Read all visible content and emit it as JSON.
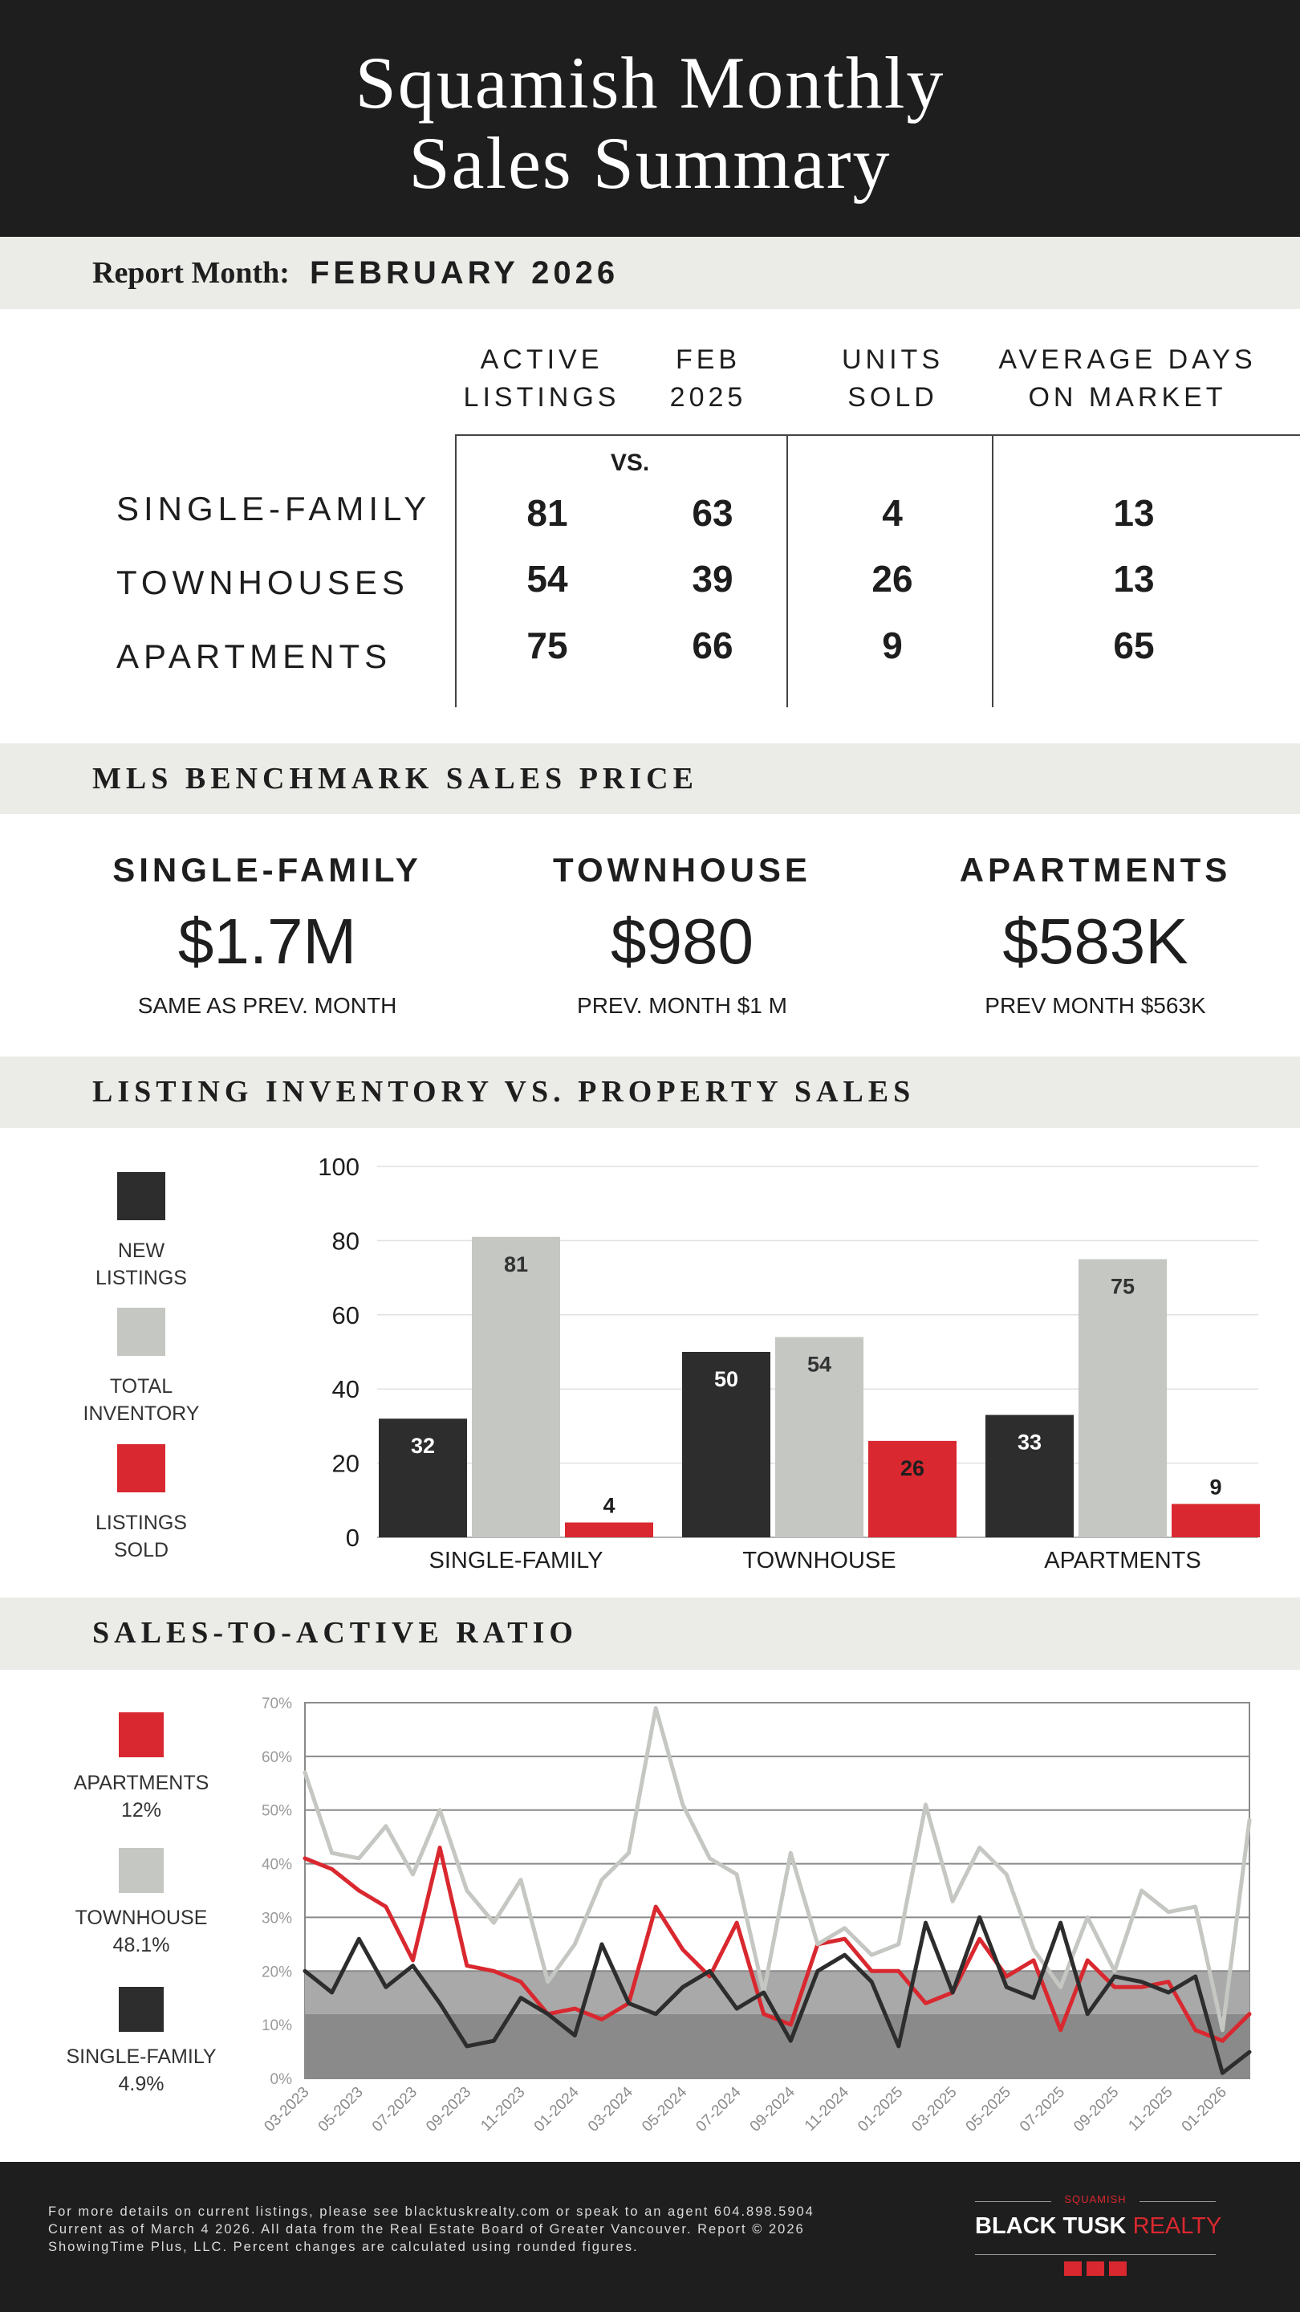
{
  "header": {
    "title_line1": "Squamish Monthly",
    "title_line2": "Sales Summary"
  },
  "report": {
    "label": "Report Month:",
    "month": "FEBRUARY 2026"
  },
  "summary_table": {
    "columns": [
      {
        "line1": "ACTIVE",
        "line2": "LISTINGS"
      },
      {
        "line1": "FEB",
        "line2": "2025"
      },
      {
        "line1": "UNITS",
        "line2": "SOLD"
      },
      {
        "line1": "AVERAGE DAYS",
        "line2": "ON MARKET"
      }
    ],
    "vs_label": "VS.",
    "rows": [
      {
        "label": "SINGLE-FAMILY",
        "active": "81",
        "prev": "63",
        "sold": "4",
        "dom": "13"
      },
      {
        "label": "TOWNHOUSES",
        "active": "54",
        "prev": "39",
        "sold": "26",
        "dom": "13"
      },
      {
        "label": "APARTMENTS",
        "active": "75",
        "prev": "66",
        "sold": "9",
        "dom": "65"
      }
    ]
  },
  "benchmark": {
    "section_title": "MLS BENCHMARK SALES PRICE",
    "items": [
      {
        "title": "SINGLE-FAMILY",
        "value": "$1.7M",
        "sub": "SAME AS PREV. MONTH"
      },
      {
        "title": "TOWNHOUSE",
        "value": "$980",
        "sub": "PREV. MONTH $1 M"
      },
      {
        "title": "APARTMENTS",
        "value": "$583K",
        "sub": "PREV MONTH $563K"
      }
    ]
  },
  "inventory": {
    "section_title": "LISTING INVENTORY VS. PROPERTY SALES",
    "legend": [
      {
        "line1": "NEW",
        "line2": "LISTINGS",
        "color": "#2d2d2d"
      },
      {
        "line1": "TOTAL",
        "line2": "INVENTORY",
        "color": "#c4c7c2"
      },
      {
        "line1": "LISTINGS",
        "line2": "SOLD",
        "color": "#d9282f"
      }
    ]
  },
  "ratio": {
    "section_title": "SALES-TO-ACTIVE RATIO",
    "legend": [
      {
        "line1": "APARTMENTS",
        "line2": "12%",
        "color": "#d9282f"
      },
      {
        "line1": "TOWNHOUSE",
        "line2": "48.1%",
        "color": "#c4c7c2"
      },
      {
        "line1": "SINGLE-FAMILY",
        "line2": "4.9%",
        "color": "#2d2d2d"
      }
    ]
  },
  "chart_data": [
    {
      "type": "bar",
      "categories": [
        "SINGLE-FAMILY",
        "TOWNHOUSE",
        "APARTMENTS"
      ],
      "series": [
        {
          "name": "NEW LISTINGS",
          "values": [
            32,
            50,
            33
          ],
          "color": "#2d2d2d"
        },
        {
          "name": "TOTAL INVENTORY",
          "values": [
            81,
            54,
            75
          ],
          "color": "#c4c7c2"
        },
        {
          "name": "LISTINGS SOLD",
          "values": [
            4,
            26,
            9
          ],
          "color": "#d9282f"
        }
      ],
      "ylim": [
        0,
        100
      ],
      "yticks": [
        0,
        20,
        40,
        60,
        80,
        100
      ],
      "grid": true
    },
    {
      "type": "line",
      "x": [
        "03-2023",
        "04-2023",
        "05-2023",
        "06-2023",
        "07-2023",
        "08-2023",
        "09-2023",
        "10-2023",
        "11-2023",
        "12-2023",
        "01-2024",
        "02-2024",
        "03-2024",
        "04-2024",
        "05-2024",
        "06-2024",
        "07-2024",
        "08-2024",
        "09-2024",
        "10-2024",
        "11-2024",
        "12-2024",
        "01-2025",
        "02-2025",
        "03-2025",
        "04-2025",
        "05-2025",
        "06-2025",
        "07-2025",
        "08-2025",
        "09-2025",
        "10-2025",
        "11-2025",
        "12-2025",
        "01-2026",
        "02-2026"
      ],
      "xtick_labels": [
        "03-2023",
        "05-2023",
        "07-2023",
        "09-2023",
        "11-2023",
        "01-2024",
        "03-2024",
        "05-2024",
        "07-2024",
        "09-2024",
        "11-2024",
        "01-2025",
        "03-2025",
        "05-2025",
        "07-2025",
        "09-2025",
        "11-2025",
        "01-2026"
      ],
      "series": [
        {
          "name": "APARTMENTS",
          "color": "#d9282f",
          "values": [
            41,
            39,
            35,
            32,
            22,
            43,
            21,
            20,
            18,
            12,
            13,
            11,
            14,
            32,
            24,
            19,
            29,
            12,
            10,
            25,
            26,
            20,
            20,
            14,
            16,
            26,
            19,
            22,
            9,
            22,
            17,
            17,
            18,
            9,
            7,
            12
          ]
        },
        {
          "name": "TOWNHOUSE",
          "color": "#c4c7c2",
          "values": [
            57,
            42,
            41,
            47,
            38,
            50,
            35,
            29,
            37,
            18,
            25,
            37,
            42,
            69,
            51,
            41,
            38,
            16,
            42,
            25,
            28,
            23,
            25,
            51,
            33,
            43,
            38,
            24,
            17,
            30,
            20,
            35,
            31,
            32,
            9,
            48.1
          ]
        },
        {
          "name": "SINGLE-FAMILY",
          "color": "#2d2d2d",
          "values": [
            20,
            16,
            26,
            17,
            21,
            14,
            6,
            7,
            15,
            12,
            8,
            25,
            14,
            12,
            17,
            20,
            13,
            16,
            7,
            20,
            23,
            18,
            6,
            29,
            16,
            30,
            17,
            15,
            29,
            12,
            19,
            18,
            16,
            19,
            1,
            4.9
          ]
        }
      ],
      "ylim": [
        0,
        70
      ],
      "yticks": [
        0,
        10,
        20,
        30,
        40,
        50,
        60,
        70
      ],
      "ytick_suffix": "%",
      "bands": [
        [
          0,
          12
        ],
        [
          12,
          20
        ]
      ],
      "grid": true
    }
  ],
  "footer": {
    "note_line1": "For more details on current listings, please see blacktuskrealty.com or speak to an agent 604.898.5904",
    "note_line2": "Current as of March 4 2026. All data from the Real Estate Board of Greater Vancouver. Report © 2026",
    "note_line3": "ShowingTime Plus, LLC. Percent changes are calculated using rounded figures.",
    "logo_small": "SQUAMISH",
    "logo_main": "BLACK TUSK",
    "logo_accent": "REALTY"
  }
}
